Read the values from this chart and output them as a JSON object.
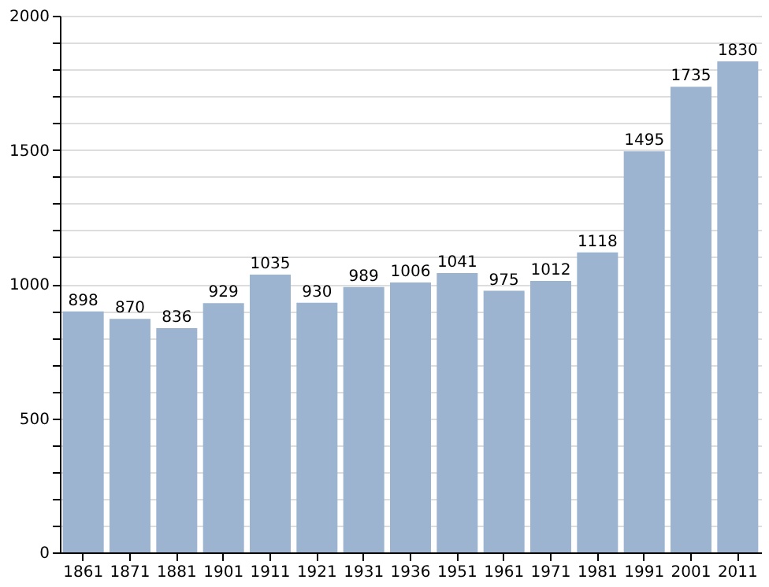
{
  "chart_data": {
    "type": "bar",
    "categories": [
      "1861",
      "1871",
      "1881",
      "1901",
      "1911",
      "1921",
      "1931",
      "1936",
      "1951",
      "1961",
      "1971",
      "1981",
      "1991",
      "2001",
      "2011"
    ],
    "values": [
      898,
      870,
      836,
      929,
      1035,
      930,
      989,
      1006,
      1041,
      975,
      1012,
      1118,
      1495,
      1735,
      1830
    ],
    "color": "#9cb4d0",
    "data_labels": true,
    "grid": "y",
    "ylim": [
      0,
      2000
    ],
    "yticks": [
      0,
      {
        "value": 100,
        "label": null
      },
      {
        "value": 200,
        "label": null
      },
      {
        "value": 300,
        "label": null
      },
      {
        "value": 400,
        "label": null
      },
      500,
      {
        "value": 600,
        "label": null
      },
      {
        "value": 700,
        "label": null
      },
      {
        "value": 800,
        "label": null
      },
      {
        "value": 900,
        "label": null
      },
      1000,
      {
        "value": 1100,
        "label": null
      },
      {
        "value": 1200,
        "label": null
      },
      {
        "value": 1300,
        "label": null
      },
      {
        "value": 1400,
        "label": null
      },
      1500,
      {
        "value": 1600,
        "label": null
      },
      {
        "value": 1700,
        "label": null
      },
      {
        "value": 1800,
        "label": null
      },
      {
        "value": 1900,
        "label": null
      },
      2000
    ]
  }
}
